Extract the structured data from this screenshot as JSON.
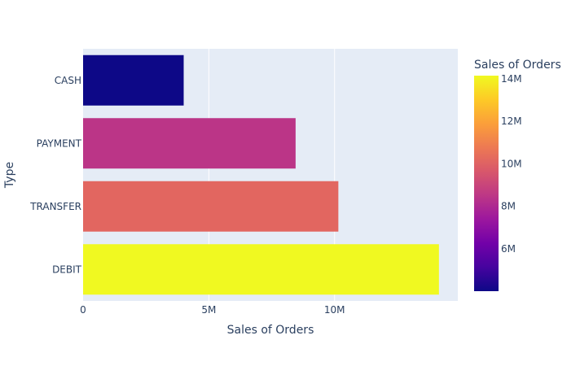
{
  "chart_data": {
    "type": "bar",
    "orientation": "horizontal",
    "categories": [
      "CASH",
      "PAYMENT",
      "TRANSFER",
      "DEBIT"
    ],
    "values": [
      4000000,
      8450000,
      10150000,
      14150000
    ],
    "xlabel": "Sales of Orders",
    "ylabel": "Type",
    "xlim": [
      0,
      14900000
    ],
    "x_ticks": [
      {
        "value": 0,
        "label": "0"
      },
      {
        "value": 5000000,
        "label": "5M"
      },
      {
        "value": 10000000,
        "label": "10M"
      }
    ],
    "grid": "vertical",
    "colorbar": {
      "title": "Sales of Orders",
      "range": [
        4000000,
        14150000
      ],
      "ticks": [
        {
          "value": 6000000,
          "label": "6M"
        },
        {
          "value": 8000000,
          "label": "8M"
        },
        {
          "value": 10000000,
          "label": "10M"
        },
        {
          "value": 12000000,
          "label": "12M"
        },
        {
          "value": 14000000,
          "label": "14M"
        }
      ],
      "colorscale": [
        "#0d0887",
        "#46039f",
        "#7201a8",
        "#9c179e",
        "#bd3786",
        "#d8576b",
        "#ed7953",
        "#fb9f3a",
        "#fdca26",
        "#f0f921"
      ],
      "placement": "right"
    },
    "plot_background": "#e5ecf6"
  }
}
